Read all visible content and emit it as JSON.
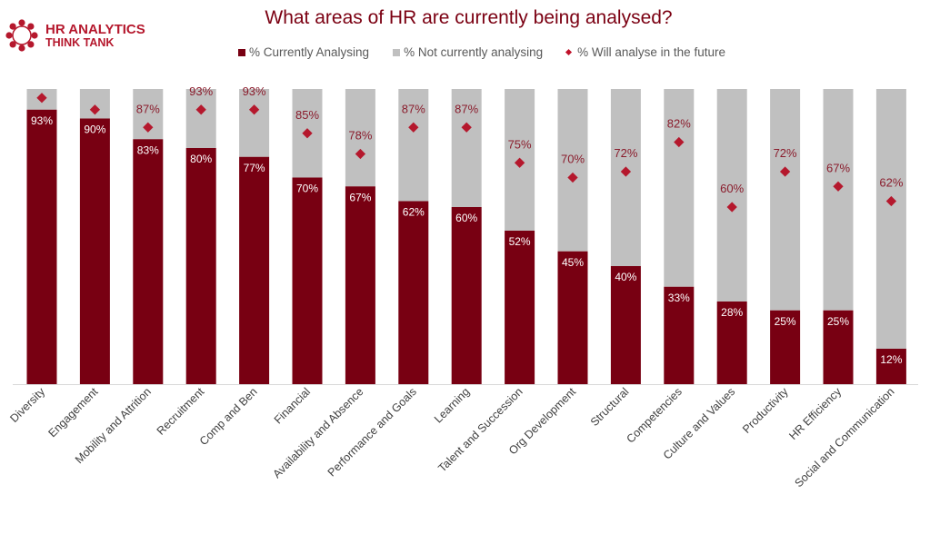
{
  "logo": {
    "line1": "HR ANALYTICS",
    "line2": "THINK TANK"
  },
  "colors": {
    "current": "#780012",
    "not_current": "#c0c0c0",
    "future": "#b5182d",
    "title": "#7b0012"
  },
  "chart_data": {
    "type": "bar",
    "stacked": true,
    "title": "What areas of HR are currently being analysed?",
    "legend_placement": "top",
    "ylim": [
      0,
      100
    ],
    "grid": false,
    "categories": [
      "Diversity",
      "Engagement",
      "Mobility and Attrition",
      "Recruitment",
      "Comp and Ben",
      "Financial",
      "Availability and Absence",
      "Performance and Goals",
      "Learning",
      "Talent and Succession",
      "Org Development",
      "Structural",
      "Competencies",
      "Culture and Values",
      "Productivity",
      "HR Efficiency",
      "Social and Communication"
    ],
    "series": [
      {
        "name": "% Currently Analysing",
        "kind": "bar",
        "values": [
          93,
          90,
          83,
          80,
          77,
          70,
          67,
          62,
          60,
          52,
          45,
          40,
          33,
          28,
          25,
          25,
          12
        ]
      },
      {
        "name": "% Not currently analysing",
        "kind": "bar",
        "values": [
          7,
          10,
          17,
          20,
          23,
          30,
          33,
          38,
          40,
          48,
          55,
          60,
          67,
          72,
          75,
          75,
          88
        ]
      },
      {
        "name": "% Will analyse in the future",
        "kind": "marker",
        "values": [
          97,
          93,
          87,
          93,
          93,
          85,
          78,
          87,
          87,
          75,
          70,
          72,
          82,
          60,
          72,
          67,
          62
        ],
        "labels_shown": [
          false,
          false,
          true,
          true,
          true,
          true,
          true,
          true,
          true,
          true,
          true,
          true,
          true,
          true,
          true,
          true,
          true
        ]
      }
    ]
  }
}
